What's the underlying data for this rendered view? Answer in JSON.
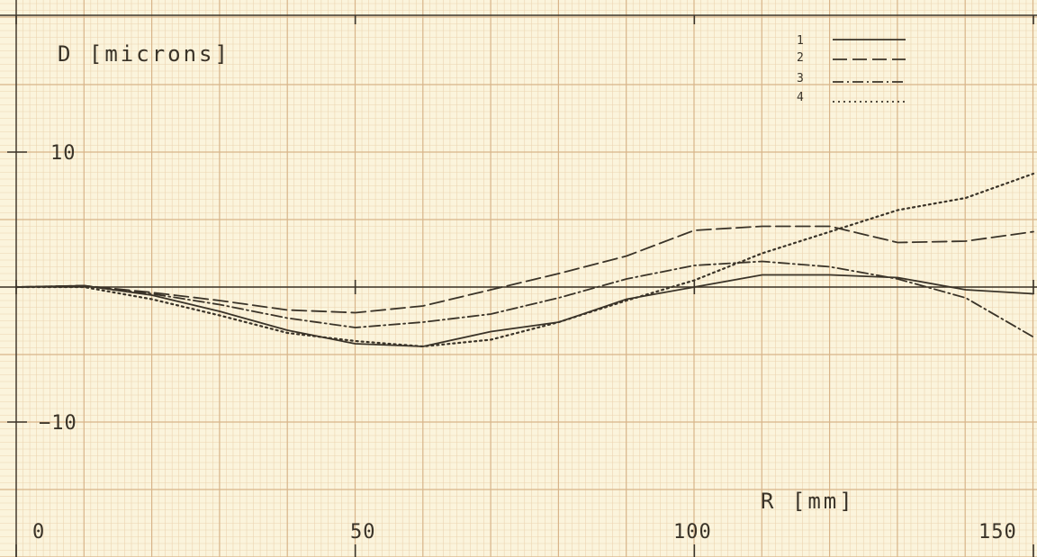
{
  "chart_data": {
    "type": "line",
    "xlabel": "R [mm]",
    "ylabel": "D [microns]",
    "xlim": [
      0,
      150
    ],
    "ylim": [
      -20,
      20
    ],
    "x_ticks": [
      {
        "value": 0,
        "label": "0"
      },
      {
        "value": 50,
        "label": "50"
      },
      {
        "value": 100,
        "label": "100"
      },
      {
        "value": 150,
        "label": "150"
      }
    ],
    "y_ticks": [
      {
        "value": 10,
        "label": "10"
      },
      {
        "value": -10,
        "label": "−10"
      }
    ],
    "grid": true,
    "legend_position": "top-right",
    "series": [
      {
        "name": "1",
        "style": "solid",
        "x": [
          0,
          10,
          20,
          30,
          40,
          50,
          60,
          70,
          80,
          90,
          100,
          110,
          120,
          130,
          140,
          150
        ],
        "y": [
          0,
          0.1,
          -0.6,
          -1.8,
          -3.2,
          -4.2,
          -4.4,
          -3.3,
          -2.6,
          -0.9,
          0,
          0.9,
          0.9,
          0.7,
          -0.2,
          -0.5
        ]
      },
      {
        "name": "2",
        "style": "dashed",
        "x": [
          0,
          10,
          20,
          30,
          40,
          50,
          60,
          70,
          80,
          90,
          100,
          110,
          120,
          130,
          140,
          150
        ],
        "y": [
          0,
          0.1,
          -0.4,
          -1.0,
          -1.7,
          -1.9,
          -1.4,
          -0.2,
          1.0,
          2.3,
          4.2,
          4.5,
          4.5,
          3.3,
          3.4,
          4.1
        ]
      },
      {
        "name": "3",
        "style": "dash-dot",
        "x": [
          0,
          10,
          20,
          30,
          40,
          50,
          60,
          70,
          80,
          90,
          100,
          110,
          120,
          130,
          140,
          150
        ],
        "y": [
          0,
          0.1,
          -0.5,
          -1.3,
          -2.3,
          -3.0,
          -2.6,
          -2.0,
          -0.8,
          0.6,
          1.6,
          1.9,
          1.5,
          0.6,
          -0.8,
          -3.7
        ]
      },
      {
        "name": "4",
        "style": "dotted",
        "x": [
          0,
          10,
          20,
          30,
          40,
          50,
          60,
          70,
          80,
          90,
          100,
          110,
          120,
          130,
          140,
          150
        ],
        "y": [
          0,
          0,
          -0.9,
          -2.1,
          -3.4,
          -4.0,
          -4.4,
          -3.9,
          -2.6,
          -1.0,
          0.5,
          2.5,
          4.1,
          5.7,
          6.6,
          8.4
        ]
      }
    ],
    "colors": {
      "paper": "#fbf4dc",
      "grid_minor": "#ecd4b0",
      "grid_major": "#d8b489",
      "ink": "#3a3328"
    }
  }
}
